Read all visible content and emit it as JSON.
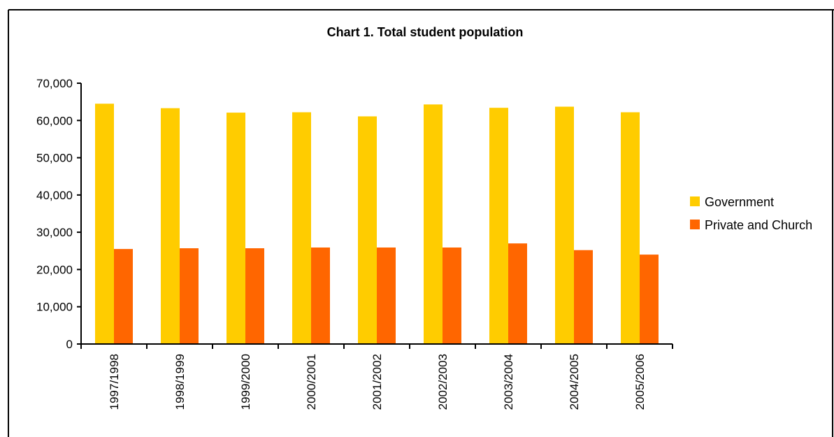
{
  "chart_data": {
    "type": "bar",
    "title": "Chart 1. Total student population",
    "categories": [
      "1997/1998",
      "1998/1999",
      "1999/2000",
      "2000/2001",
      "2001/2002",
      "2002/2003",
      "2003/2004",
      "2004/2005",
      "2005/2006"
    ],
    "series": [
      {
        "name": "Government",
        "color": "#FFCC00",
        "values": [
          64500,
          63300,
          62100,
          62200,
          61100,
          64300,
          63400,
          63700,
          62200
        ]
      },
      {
        "name": "Private and Church",
        "color": "#FF6600",
        "values": [
          25500,
          25700,
          25700,
          25900,
          25900,
          25900,
          27000,
          25200,
          24000
        ]
      }
    ],
    "y_ticks": [
      "0",
      "10,000",
      "20,000",
      "30,000",
      "40,000",
      "50,000",
      "60,000",
      "70,000"
    ],
    "ylim": [
      0,
      70000
    ],
    "grid": false,
    "legend_position": "right"
  }
}
